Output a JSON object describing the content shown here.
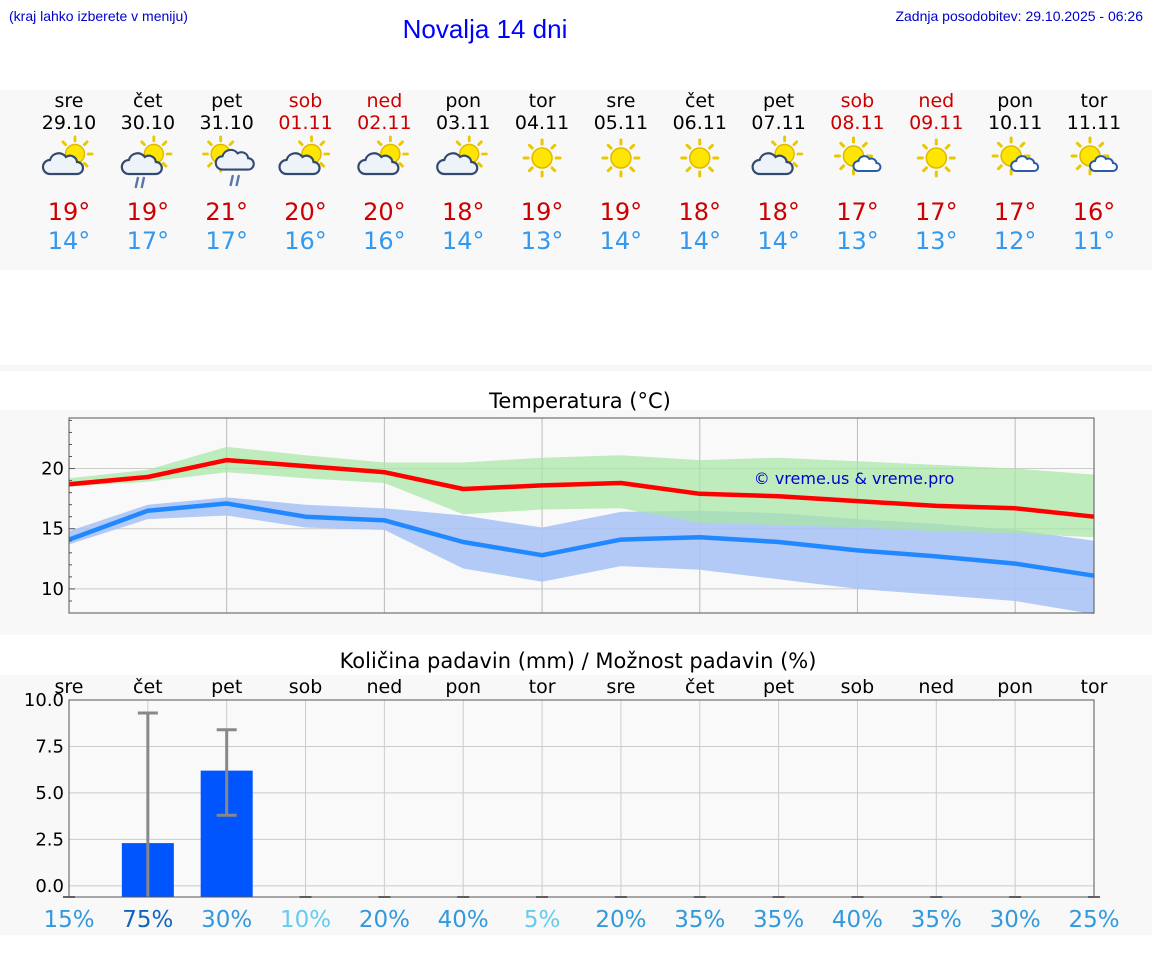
{
  "header": {
    "menu_hint": "(kraj lahko izberete v meniju)",
    "title": "Novalja 14 dni",
    "last_update": "Zadnja posodobitev: 29.10.2025 - 06:26"
  },
  "colors": {
    "weekday": "#000000",
    "weekend": "#cc0000",
    "max_temp": "#cc0000",
    "min_temp": "#3399ee",
    "max_line": "#ff0000",
    "min_line": "#2288ff",
    "max_band": "#a8e6a4",
    "min_band": "#aac4f4",
    "precip_bar": "#0055ff",
    "link": "#0000cc"
  },
  "days": [
    {
      "dow": "sre",
      "date": "29.10",
      "weekend": false,
      "icon": "partly-cloudy-icon",
      "max": "19°",
      "min": "14°"
    },
    {
      "dow": "čet",
      "date": "30.10",
      "weekend": false,
      "icon": "cloudy-rain-icon",
      "max": "19°",
      "min": "17°"
    },
    {
      "dow": "pet",
      "date": "31.10",
      "weekend": false,
      "icon": "sun-cloud-rain-icon",
      "max": "21°",
      "min": "17°"
    },
    {
      "dow": "sob",
      "date": "01.11",
      "weekend": true,
      "icon": "partly-cloudy-icon",
      "max": "20°",
      "min": "16°"
    },
    {
      "dow": "ned",
      "date": "02.11",
      "weekend": true,
      "icon": "partly-cloudy-icon",
      "max": "20°",
      "min": "16°"
    },
    {
      "dow": "pon",
      "date": "03.11",
      "weekend": false,
      "icon": "partly-cloudy-icon",
      "max": "18°",
      "min": "14°"
    },
    {
      "dow": "tor",
      "date": "04.11",
      "weekend": false,
      "icon": "sun-icon",
      "max": "19°",
      "min": "13°"
    },
    {
      "dow": "sre",
      "date": "05.11",
      "weekend": false,
      "icon": "sun-icon",
      "max": "19°",
      "min": "14°"
    },
    {
      "dow": "čet",
      "date": "06.11",
      "weekend": false,
      "icon": "sun-icon",
      "max": "18°",
      "min": "14°"
    },
    {
      "dow": "pet",
      "date": "07.11",
      "weekend": false,
      "icon": "partly-cloudy-icon",
      "max": "18°",
      "min": "14°"
    },
    {
      "dow": "sob",
      "date": "08.11",
      "weekend": true,
      "icon": "mostly-sunny-icon",
      "max": "17°",
      "min": "13°"
    },
    {
      "dow": "ned",
      "date": "09.11",
      "weekend": true,
      "icon": "sun-icon",
      "max": "17°",
      "min": "13°"
    },
    {
      "dow": "pon",
      "date": "10.11",
      "weekend": false,
      "icon": "mostly-sunny-icon",
      "max": "17°",
      "min": "12°"
    },
    {
      "dow": "tor",
      "date": "11.11",
      "weekend": false,
      "icon": "mostly-sunny-icon",
      "max": "16°",
      "min": "11°"
    }
  ],
  "chart_data": [
    {
      "type": "line",
      "title": "Temperatura (°C)",
      "watermark": "© vreme.us & vreme.pro",
      "x": [
        0,
        1,
        2,
        3,
        4,
        5,
        6,
        7,
        8,
        9,
        10,
        11,
        12,
        13
      ],
      "yticks": [
        10,
        15,
        20
      ],
      "ylim": [
        8,
        24.2
      ],
      "series": [
        {
          "name": "max",
          "values": [
            18.7,
            19.3,
            20.7,
            20.2,
            19.7,
            18.3,
            18.6,
            18.8,
            17.9,
            17.7,
            17.3,
            16.9,
            16.7,
            16.0
          ]
        },
        {
          "name": "min",
          "values": [
            14.1,
            16.5,
            17.1,
            16.0,
            15.7,
            13.9,
            12.8,
            14.1,
            14.3,
            13.9,
            13.2,
            12.7,
            12.1,
            11.1
          ]
        }
      ],
      "bands": [
        {
          "name": "max_range_low",
          "values": [
            18.5,
            18.9,
            19.7,
            19.2,
            18.8,
            16.2,
            16.6,
            16.7,
            15.5,
            15.3,
            15.1,
            14.8,
            14.6,
            14.3
          ]
        },
        {
          "name": "max_range_high",
          "values": [
            19.2,
            19.9,
            21.8,
            21.1,
            20.5,
            20.5,
            20.9,
            21.1,
            20.7,
            20.9,
            20.6,
            20.3,
            20.0,
            19.5
          ]
        },
        {
          "name": "min_range_low",
          "values": [
            13.7,
            15.8,
            16.1,
            15.1,
            14.9,
            11.7,
            10.6,
            11.9,
            11.6,
            10.8,
            10.0,
            9.5,
            9.0,
            7.9
          ]
        },
        {
          "name": "min_range_high",
          "values": [
            14.8,
            17.0,
            17.6,
            17.0,
            16.7,
            16.1,
            15.1,
            16.4,
            16.5,
            16.3,
            15.8,
            15.4,
            14.9,
            14.0
          ]
        }
      ]
    },
    {
      "type": "bar",
      "title": "Količina padavin (mm) / Možnost padavin (%)",
      "categories": [
        "sre",
        "čet",
        "pet",
        "sob",
        "ned",
        "pon",
        "tor",
        "sre",
        "čet",
        "pet",
        "sob",
        "ned",
        "pon",
        "tor"
      ],
      "values": [
        0,
        2.3,
        6.2,
        0,
        0,
        0,
        0,
        0,
        0,
        0,
        0,
        0,
        0,
        0
      ],
      "error_high": [
        0,
        9.3,
        8.4,
        0,
        0,
        0,
        0,
        0,
        0,
        0,
        0,
        0,
        0,
        0
      ],
      "error_low": [
        0,
        0,
        3.8,
        0,
        0,
        0,
        0,
        0,
        0,
        0,
        0,
        0,
        0,
        0
      ],
      "yticks": [
        "0.0",
        "2.5",
        "5.0",
        "7.5",
        "10.0"
      ],
      "ylim": [
        -0.6,
        10.0
      ],
      "probability": [
        "15%",
        "75%",
        "30%",
        "10%",
        "20%",
        "40%",
        "5%",
        "20%",
        "35%",
        "35%",
        "40%",
        "35%",
        "30%",
        "25%"
      ],
      "probability_colors": [
        "#3399dd",
        "#1166bb",
        "#3399dd",
        "#66ccee",
        "#3399dd",
        "#3399dd",
        "#66ccee",
        "#3399dd",
        "#3399dd",
        "#3399dd",
        "#3399dd",
        "#3399dd",
        "#3399dd",
        "#3399dd"
      ]
    }
  ]
}
